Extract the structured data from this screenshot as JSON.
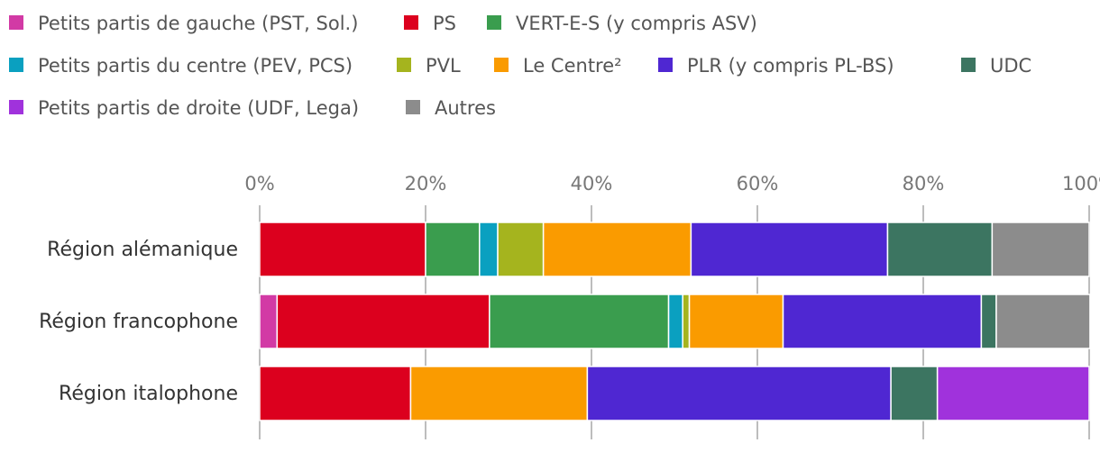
{
  "chart_data": {
    "type": "bar",
    "orientation": "horizontal",
    "stacked": true,
    "categories": [
      "Région alémanique",
      "Région francophone",
      "Région italophone"
    ],
    "xlim": [
      0,
      100
    ],
    "xticks": [
      0,
      20,
      40,
      60,
      80,
      100
    ],
    "tick_suffix": "%",
    "grid": true,
    "legend_position": "top-left",
    "series": [
      {
        "name": "Petits partis de gauche (PST, Sol.)",
        "color": "#d23aa5",
        "values": [
          0,
          2.1,
          0
        ]
      },
      {
        "name": "PS",
        "color": "#dc001e",
        "values": [
          20.0,
          25.6,
          18.2
        ]
      },
      {
        "name": "VERT-E-S (y compris ASV)",
        "color": "#3a9d4e",
        "values": [
          6.5,
          21.6,
          0
        ]
      },
      {
        "name": "Petits partis du centre (PEV, PCS)",
        "color": "#0aa0c0",
        "values": [
          2.2,
          1.7,
          0
        ]
      },
      {
        "name": "PVL",
        "color": "#a5b41e",
        "values": [
          5.5,
          0.8,
          0
        ]
      },
      {
        "name": "Le Centre²",
        "color": "#fa9b00",
        "values": [
          17.8,
          11.3,
          21.3
        ]
      },
      {
        "name": "PLR (y compris PL-BS)",
        "color": "#4f27d2",
        "values": [
          23.7,
          23.9,
          36.6
        ]
      },
      {
        "name": "UDC",
        "color": "#3c7561",
        "values": [
          12.6,
          1.8,
          5.6
        ]
      },
      {
        "name": "Petits partis de droite (UDF, Lega)",
        "color": "#a032dc",
        "values": [
          0,
          0,
          18.3
        ]
      },
      {
        "name": "Autres",
        "color": "#8c8c8c",
        "values": [
          11.7,
          11.3,
          0
        ]
      }
    ]
  }
}
